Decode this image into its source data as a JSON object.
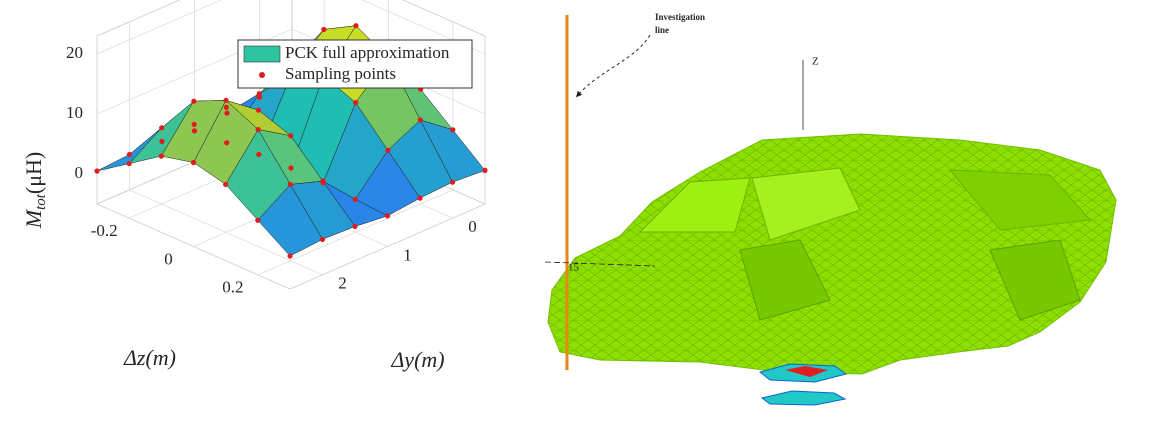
{
  "chart_data": {
    "type": "surface",
    "zlabel": [
      "M",
      "tot",
      "(μH)"
    ],
    "xlabel": "Δz(m)",
    "ylabel": "Δy(m)",
    "x": [
      -0.3,
      -0.2,
      -0.1,
      0,
      0.1,
      0.2,
      0.3
    ],
    "y": [
      -0.5,
      0,
      0.5,
      1,
      1.5,
      2,
      2.5
    ],
    "z": [
      [
        0.6,
        1.0,
        0.7,
        0.1,
        0.7,
        0.9,
        0.5
      ],
      [
        5.0,
        9.0,
        6.3,
        0.5,
        5.9,
        7.7,
        4.1
      ],
      [
        9.4,
        17.0,
        11.9,
        0.9,
        11.1,
        14.5,
        7.7
      ],
      [
        11.0,
        20.0,
        14.0,
        1.0,
        13.0,
        17.0,
        9.0
      ],
      [
        9.4,
        17.0,
        11.9,
        0.9,
        11.1,
        14.5,
        7.7
      ],
      [
        5.0,
        9.0,
        6.3,
        0.5,
        5.9,
        7.7,
        4.1
      ],
      [
        0.6,
        1.0,
        0.7,
        0.1,
        0.7,
        0.9,
        0.5
      ]
    ],
    "xlim": [
      -0.3,
      0.3
    ],
    "ylim": [
      -0.5,
      2.5
    ],
    "zlim": [
      -5,
      23
    ],
    "xticks": [
      -0.2,
      0,
      0.2
    ],
    "yticks": [
      0,
      1,
      2
    ],
    "zticks": [
      0,
      10,
      20
    ],
    "grid": true,
    "legend_position": "upper right",
    "series": [
      {
        "name": "PCK full approximation",
        "color": "#2ec4a0"
      },
      {
        "name": "Sampling points",
        "color": "#e41a1c"
      }
    ]
  },
  "image_labels": {
    "annotation": [
      "Investigation",
      "line"
    ],
    "axis_z": "Z",
    "axis_mark": "15"
  }
}
